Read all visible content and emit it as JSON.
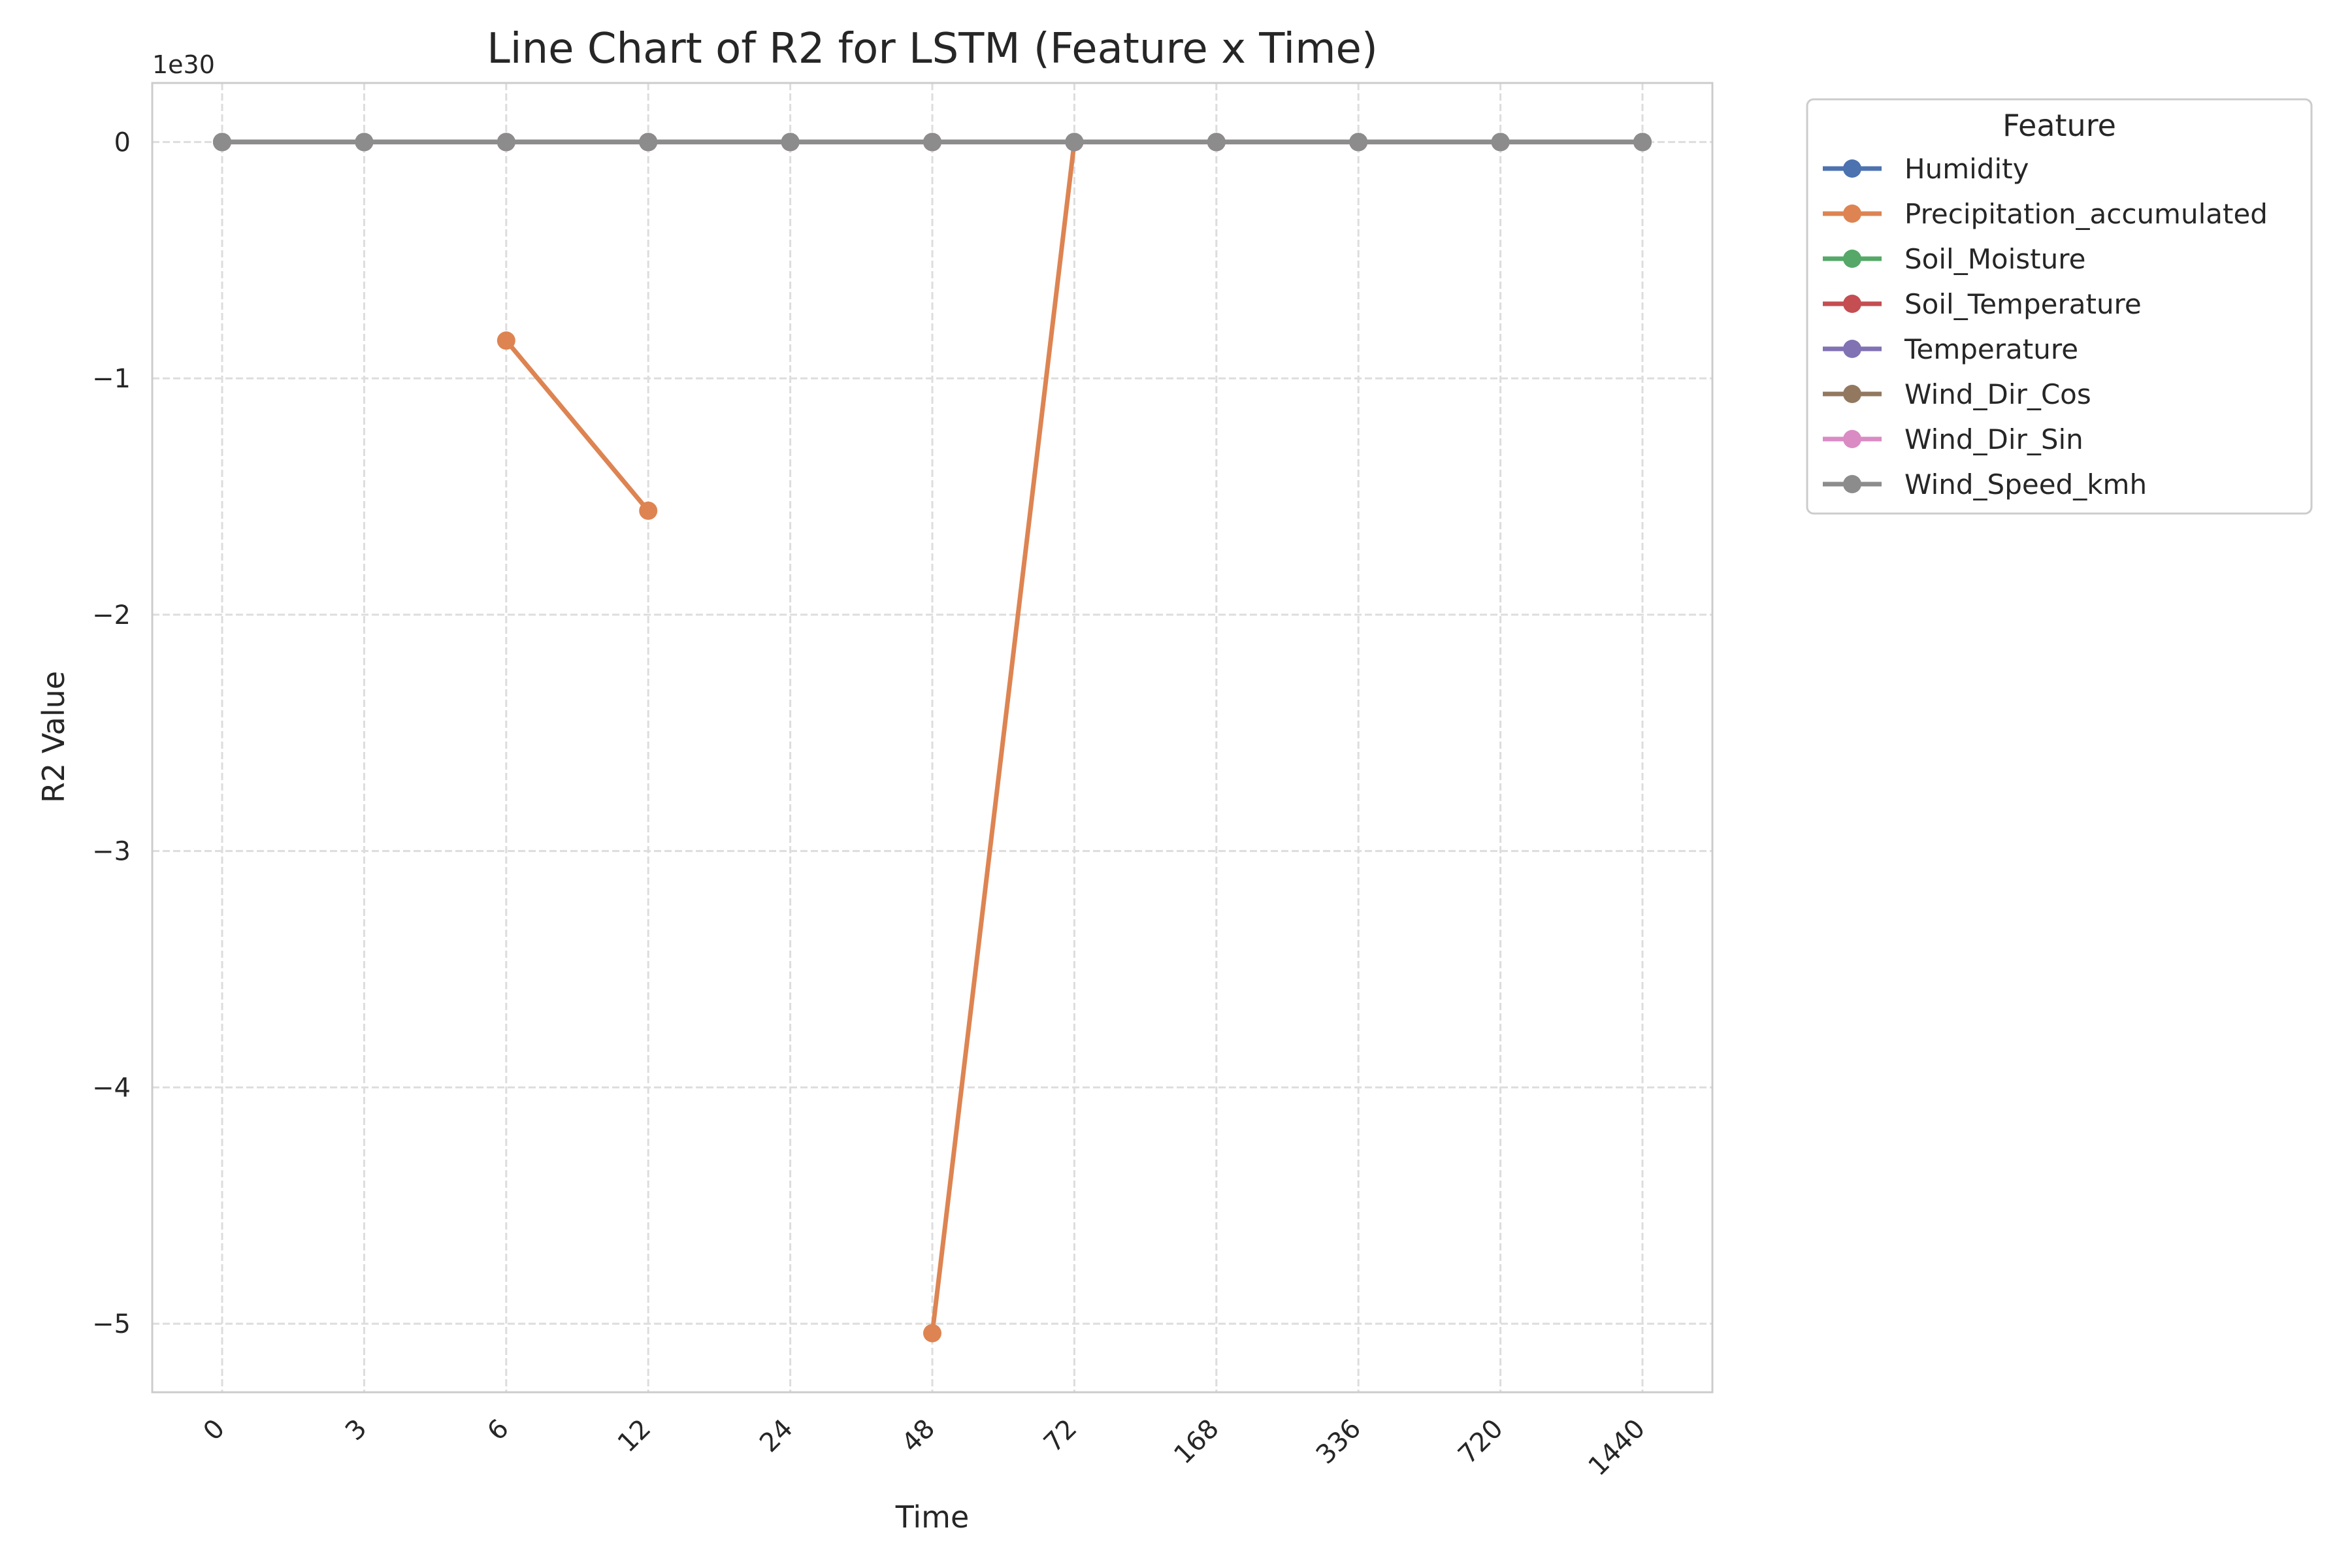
{
  "chart_data": {
    "type": "line",
    "title": "Line Chart of R2 for LSTM (Feature x Time)",
    "xlabel": "Time",
    "ylabel": "R2 Value",
    "y_offset_label": "1e30",
    "y_scale_factor": 1e+30,
    "categories": [
      "0",
      "3",
      "6",
      "12",
      "24",
      "48",
      "72",
      "168",
      "336",
      "720",
      "1440"
    ],
    "y_ticks": [
      0,
      -1,
      -2,
      -3,
      -4,
      -5
    ],
    "y_tick_labels": [
      "0",
      "−1",
      "−2",
      "−3",
      "−4",
      "−5"
    ],
    "ylim": [
      -5.29,
      0.25
    ],
    "grid": true,
    "legend": {
      "title": "Feature",
      "placement": "outside-top-right"
    },
    "series": [
      {
        "name": "Humidity",
        "color": "#4c72b0",
        "values": [
          0,
          0,
          0,
          0,
          0,
          0,
          0,
          0,
          0,
          0,
          0
        ]
      },
      {
        "name": "Precipitation_accumulated",
        "color": "#dd8452",
        "values": [
          null,
          null,
          -0.84,
          -1.56,
          null,
          -5.04,
          0,
          null,
          null,
          null,
          null
        ]
      },
      {
        "name": "Soil_Moisture",
        "color": "#55a868",
        "values": [
          0,
          0,
          0,
          0,
          0,
          0,
          0,
          0,
          0,
          0,
          0
        ]
      },
      {
        "name": "Soil_Temperature",
        "color": "#c44e52",
        "values": [
          0,
          0,
          0,
          0,
          0,
          0,
          0,
          0,
          0,
          0,
          0
        ]
      },
      {
        "name": "Temperature",
        "color": "#8172b3",
        "values": [
          0,
          0,
          0,
          0,
          0,
          0,
          0,
          0,
          0,
          0,
          0
        ]
      },
      {
        "name": "Wind_Dir_Cos",
        "color": "#937860",
        "values": [
          0,
          0,
          0,
          0,
          0,
          0,
          0,
          0,
          0,
          0,
          0
        ]
      },
      {
        "name": "Wind_Dir_Sin",
        "color": "#da8bc3",
        "values": [
          0,
          0,
          0,
          0,
          0,
          0,
          0,
          0,
          0,
          0,
          0
        ]
      },
      {
        "name": "Wind_Speed_kmh",
        "color": "#8c8c8c",
        "values": [
          0,
          0,
          0,
          0,
          0,
          0,
          0,
          0,
          0,
          0,
          0
        ]
      }
    ]
  }
}
